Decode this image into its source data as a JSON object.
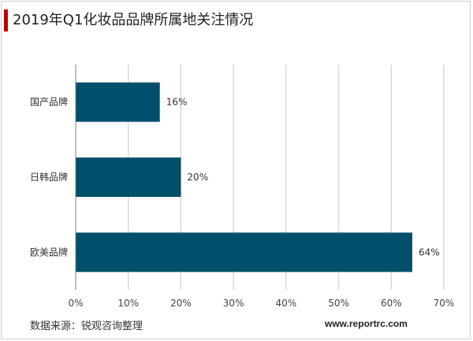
{
  "header": {
    "title": "2019年Q1化妆品品牌所属地关注情况"
  },
  "footer": {
    "source": "数据来源：锐观咨询整理",
    "website": "www.reportrc.com"
  },
  "colors": {
    "bar": "#00506b",
    "accent": "#c00000",
    "grid": "#d9d9d9",
    "axis": "#808080"
  },
  "chart_data": {
    "type": "bar",
    "orientation": "horizontal",
    "title": "2019年Q1化妆品品牌所属地关注情况",
    "categories": [
      "国产品牌",
      "日韩品牌",
      "欧美品牌"
    ],
    "values": [
      16,
      20,
      64
    ],
    "value_labels": [
      "16%",
      "20%",
      "64%"
    ],
    "xlim": [
      0,
      70
    ],
    "xticks": [
      0,
      10,
      20,
      30,
      40,
      50,
      60,
      70
    ],
    "xtick_labels": [
      "0%",
      "10%",
      "20%",
      "30%",
      "40%",
      "50%",
      "60%",
      "70%"
    ],
    "xlabel": "",
    "ylabel": "",
    "grid": true,
    "legend": "none"
  }
}
